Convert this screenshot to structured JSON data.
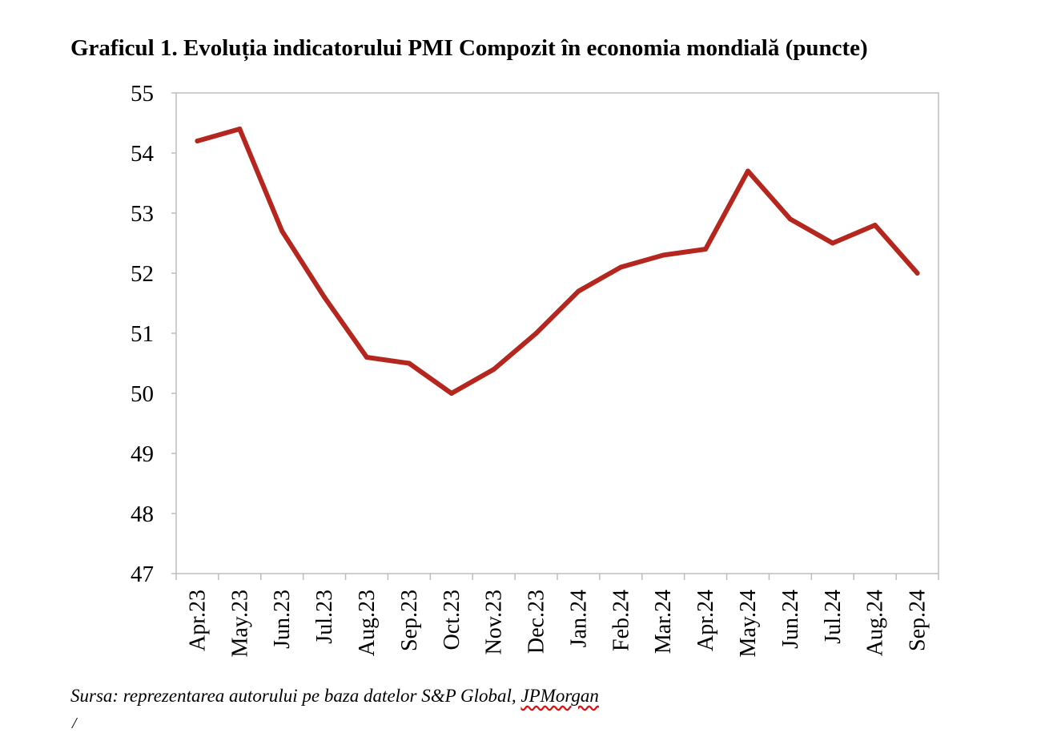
{
  "title": "Graficul 1. Evoluția indicatorului PMI Compozit în economia mondială (puncte)",
  "source": {
    "prefix": "Sursa: reprezentarea autorului pe baza datelor S&P Global, ",
    "org": "JPMorgan"
  },
  "cursor": "/",
  "chart_data": {
    "type": "line",
    "title": "Graficul 1. Evoluția indicatorului PMI Compozit în economia mondială (puncte)",
    "xlabel": "",
    "ylabel": "",
    "ylim": [
      47,
      55
    ],
    "yticks": [
      47,
      48,
      49,
      50,
      51,
      52,
      53,
      54,
      55
    ],
    "grid": false,
    "legend": "none",
    "categories": [
      "Apr.23",
      "May.23",
      "Jun.23",
      "Jul.23",
      "Aug.23",
      "Sep.23",
      "Oct.23",
      "Nov.23",
      "Dec.23",
      "Jan.24",
      "Feb.24",
      "Mar.24",
      "Apr.24",
      "May.24",
      "Jun.24",
      "Jul.24",
      "Aug.24",
      "Sep.24"
    ],
    "series": [
      {
        "color": "#b5271e",
        "values": [
          54.2,
          54.4,
          52.7,
          51.6,
          50.6,
          50.5,
          50.0,
          50.4,
          51.0,
          51.7,
          52.1,
          52.3,
          52.4,
          53.7,
          52.9,
          52.5,
          52.8,
          52.0
        ]
      }
    ]
  }
}
